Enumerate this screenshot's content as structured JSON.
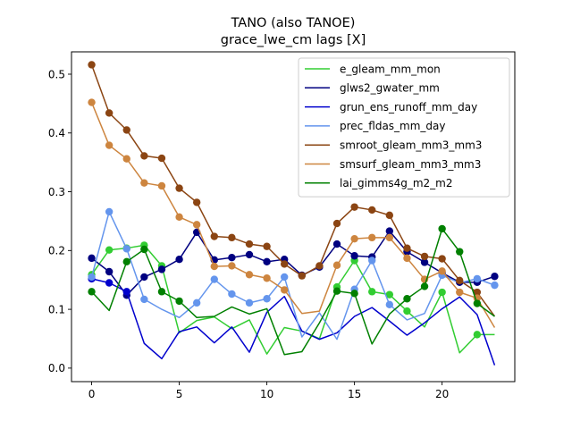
{
  "chart_data": {
    "type": "line",
    "title": "TANO (also TANOE)",
    "subtitle": "grace_lwe_cm lags [X]",
    "xlabel": "",
    "ylabel": "",
    "xlim": [
      -1.15,
      24.15
    ],
    "ylim": [
      -0.023,
      0.538
    ],
    "xticks": [
      0,
      5,
      10,
      15,
      20
    ],
    "yticks": [
      0.0,
      0.1,
      0.2,
      0.3,
      0.4,
      0.5
    ],
    "xtick_labels": [
      "0",
      "5",
      "10",
      "15",
      "20"
    ],
    "ytick_labels": [
      "0.0",
      "0.1",
      "0.2",
      "0.3",
      "0.4",
      "0.5"
    ],
    "legend_position": "upper right",
    "grid": false,
    "x": [
      0,
      1,
      2,
      3,
      4,
      5,
      6,
      7,
      8,
      9,
      10,
      11,
      12,
      13,
      14,
      15,
      16,
      17,
      18,
      19,
      20,
      21,
      22,
      23
    ],
    "series": [
      {
        "name": "e_gleam_mm_mon",
        "color": "#32cd32",
        "values": [
          0.159,
          0.201,
          0.204,
          0.209,
          0.174,
          0.06,
          0.081,
          0.087,
          0.067,
          0.082,
          0.024,
          0.069,
          0.063,
          0.05,
          0.138,
          0.183,
          0.13,
          0.125,
          0.097,
          0.07,
          0.129,
          0.026,
          0.057,
          0.057
        ],
        "markers": [
          0,
          1,
          2,
          3,
          4,
          14,
          15,
          16,
          17,
          18,
          20,
          22
        ]
      },
      {
        "name": "glws2_gwater_mm",
        "color": "#000080",
        "values": [
          0.187,
          0.164,
          0.124,
          0.155,
          0.168,
          0.185,
          0.231,
          0.184,
          0.188,
          0.193,
          0.181,
          0.185,
          0.158,
          0.172,
          0.211,
          0.191,
          0.189,
          0.233,
          0.198,
          0.18,
          0.162,
          0.146,
          0.146,
          0.156
        ],
        "markers": [
          0,
          1,
          2,
          3,
          4,
          5,
          6,
          7,
          8,
          9,
          10,
          11,
          12,
          13,
          14,
          15,
          16,
          17,
          18,
          19,
          20,
          21,
          22,
          23
        ]
      },
      {
        "name": "grun_ens_runoff_mm_day",
        "color": "#0000cd",
        "values": [
          0.152,
          0.145,
          0.13,
          0.042,
          0.016,
          0.062,
          0.07,
          0.043,
          0.07,
          0.027,
          0.095,
          0.122,
          0.063,
          0.049,
          0.06,
          0.088,
          0.103,
          0.08,
          0.056,
          0.077,
          0.101,
          0.121,
          0.091,
          0.005
        ],
        "markers": [
          0,
          1,
          2
        ]
      },
      {
        "name": "prec_fldas_mm_day",
        "color": "#6495ed",
        "values": [
          0.155,
          0.266,
          0.203,
          0.117,
          0.1,
          0.086,
          0.111,
          0.151,
          0.126,
          0.111,
          0.118,
          0.155,
          0.053,
          0.094,
          0.049,
          0.134,
          0.183,
          0.108,
          0.082,
          0.093,
          0.158,
          0.145,
          0.152,
          0.141
        ],
        "markers": [
          0,
          1,
          2,
          3,
          6,
          7,
          8,
          9,
          10,
          11,
          15,
          16,
          17,
          20,
          22,
          23
        ]
      },
      {
        "name": "smroot_gleam_mm3_mm3",
        "color": "#8b4513",
        "values": [
          0.516,
          0.434,
          0.405,
          0.361,
          0.357,
          0.306,
          0.282,
          0.224,
          0.222,
          0.211,
          0.207,
          0.177,
          0.157,
          0.174,
          0.246,
          0.274,
          0.269,
          0.26,
          0.204,
          0.19,
          0.186,
          0.149,
          0.129,
          0.088
        ],
        "markers": [
          0,
          1,
          2,
          3,
          4,
          5,
          6,
          7,
          8,
          9,
          10,
          11,
          12,
          13,
          14,
          15,
          16,
          17,
          18,
          19,
          20,
          21,
          22
        ]
      },
      {
        "name": "smsurf_gleam_mm3_mm3",
        "color": "#cd853f",
        "values": [
          0.452,
          0.379,
          0.356,
          0.315,
          0.31,
          0.257,
          0.244,
          0.173,
          0.174,
          0.159,
          0.153,
          0.133,
          0.093,
          0.097,
          0.175,
          0.22,
          0.222,
          0.222,
          0.187,
          0.151,
          0.165,
          0.129,
          0.119,
          0.069
        ],
        "markers": [
          0,
          1,
          2,
          3,
          4,
          5,
          6,
          7,
          8,
          9,
          10,
          11,
          14,
          15,
          16,
          17,
          18,
          19,
          20,
          21,
          22
        ]
      },
      {
        "name": "lai_gimms4g_m2_m2",
        "color": "#008000",
        "values": [
          0.13,
          0.098,
          0.181,
          0.202,
          0.13,
          0.114,
          0.086,
          0.088,
          0.104,
          0.092,
          0.101,
          0.023,
          0.028,
          0.077,
          0.131,
          0.127,
          0.041,
          0.092,
          0.118,
          0.139,
          0.237,
          0.198,
          0.11,
          0.088
        ],
        "markers": [
          0,
          2,
          3,
          4,
          5,
          14,
          15,
          18,
          19,
          20,
          21,
          22
        ]
      }
    ]
  }
}
